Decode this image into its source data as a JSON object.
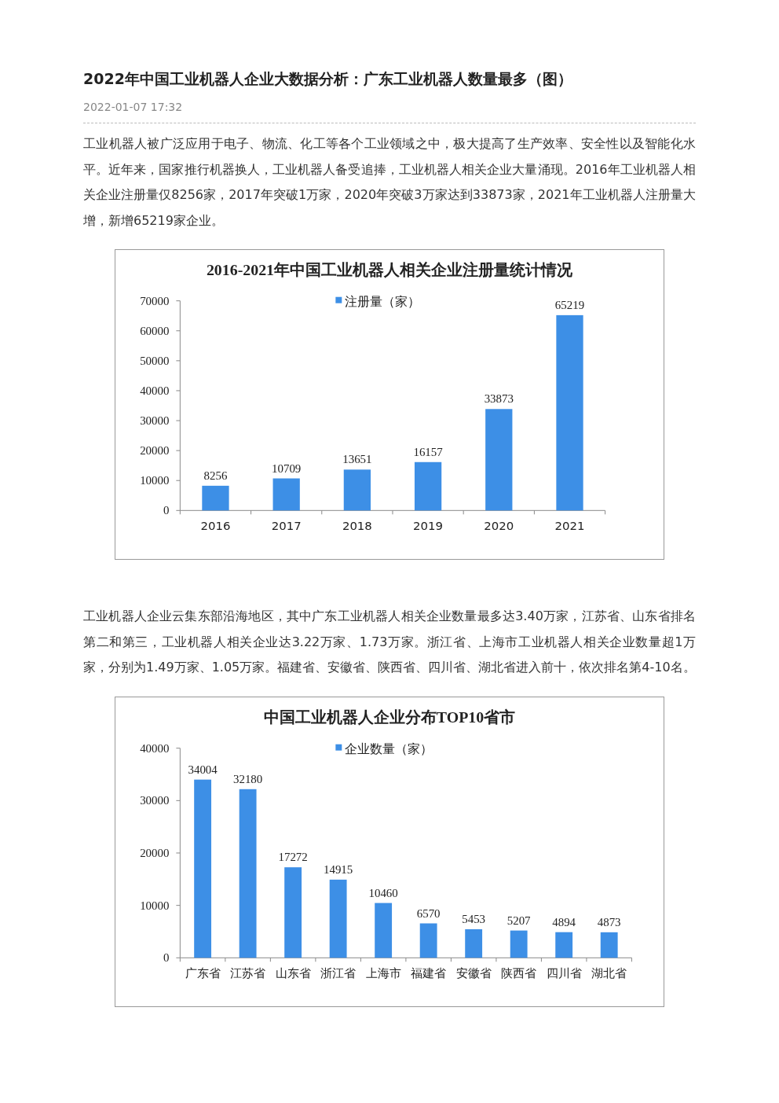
{
  "chart_data": [
    {
      "type": "bar",
      "title": "2016-2021年中国工业机器人相关企业注册量统计情况",
      "annotations": [
        "2022年中国工业机器人企业大数据分析：广东工业机器人数量最多（图）",
        "2022-01-07 17:32",
        "工业机器人被广泛应用于电子、物流、化工等各个工业领域之中，极大提高了生产效率、安全性以及智能化水平。近年来，国家推行机器换人，工业机器人备受追捧，工业机器人相关企业大量涌现。2016年工业机器人相关企业注册量仅8256家，2017年突破1万家，2020年突破3万家达到33873家，2021年工业机器人注册量大增，新增65219家企业。"
      ],
      "categories": [
        "2016",
        "2017",
        "2018",
        "2019",
        "2020",
        "2021"
      ],
      "series": [
        {
          "name": "注册量（家）",
          "color": "#3d8fe6",
          "values": [
            8256,
            10709,
            13651,
            16157,
            33873,
            65219
          ]
        }
      ],
      "ylim": [
        0,
        70000
      ],
      "yticks": [
        0,
        10000,
        20000,
        30000,
        40000,
        50000,
        60000,
        70000
      ],
      "data_labels": true,
      "legend": "top",
      "grid": false
    },
    {
      "type": "bar",
      "title": "中国工业机器人企业分布TOP10省市",
      "annotations": [
        "工业机器人企业云集东部沿海地区，其中广东工业机器人相关企业数量最多达3.40万家，江苏省、山东省排名第二和第三，工业机器人相关企业达3.22万家、1.73万家。浙江省、上海市工业机器人相关企业数量超1万家，分别为1.49万家、1.05万家。福建省、安徽省、陕西省、四川省、湖北省进入前十，依次排名第4-10名。"
      ],
      "categories": [
        "广东省",
        "江苏省",
        "山东省",
        "浙江省",
        "上海市",
        "福建省",
        "安徽省",
        "陕西省",
        "四川省",
        "湖北省"
      ],
      "series": [
        {
          "name": "企业数量（家）",
          "color": "#3d8fe6",
          "values": [
            34004,
            32180,
            17272,
            14915,
            10460,
            6570,
            5453,
            5207,
            4894,
            4873
          ]
        }
      ],
      "ylim": [
        0,
        40000
      ],
      "yticks": [
        0,
        10000,
        20000,
        30000,
        40000
      ],
      "data_labels": true,
      "legend": "top",
      "grid": false
    }
  ]
}
